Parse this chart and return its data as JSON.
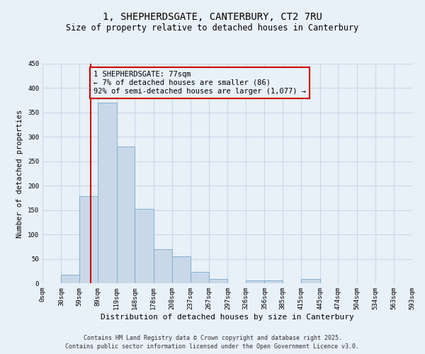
{
  "title_line1": "1, SHEPHERDSGATE, CANTERBURY, CT2 7RU",
  "title_line2": "Size of property relative to detached houses in Canterbury",
  "xlabel": "Distribution of detached houses by size in Canterbury",
  "ylabel": "Number of detached properties",
  "bin_edges": [
    0,
    30,
    59,
    89,
    119,
    148,
    178,
    208,
    237,
    267,
    297,
    326,
    356,
    385,
    415,
    445,
    474,
    504,
    534,
    563,
    593
  ],
  "bar_heights": [
    0,
    17,
    178,
    370,
    280,
    153,
    70,
    55,
    23,
    8,
    0,
    6,
    6,
    0,
    8,
    0,
    0,
    0,
    0,
    0
  ],
  "bar_color": "#c8d8e8",
  "bar_edge_color": "#7aa8c8",
  "grid_color": "#c8d8e8",
  "background_color": "#e8f0f8",
  "property_line_x": 77,
  "property_line_color": "#cc0000",
  "annotation_text": "1 SHEPHERDSGATE: 77sqm\n← 7% of detached houses are smaller (86)\n92% of semi-detached houses are larger (1,077) →",
  "annotation_box_color": "#cc0000",
  "ylim": [
    0,
    450
  ],
  "yticks": [
    0,
    50,
    100,
    150,
    200,
    250,
    300,
    350,
    400,
    450
  ],
  "tick_labels": [
    "0sqm",
    "30sqm",
    "59sqm",
    "89sqm",
    "119sqm",
    "148sqm",
    "178sqm",
    "208sqm",
    "237sqm",
    "267sqm",
    "297sqm",
    "326sqm",
    "356sqm",
    "385sqm",
    "415sqm",
    "445sqm",
    "474sqm",
    "504sqm",
    "534sqm",
    "563sqm",
    "593sqm"
  ],
  "footnote1": "Contains HM Land Registry data © Crown copyright and database right 2025.",
  "footnote2": "Contains public sector information licensed under the Open Government Licence v3.0.",
  "title_fontsize": 10,
  "subtitle_fontsize": 8.5,
  "axis_label_fontsize": 8,
  "tick_fontsize": 6.5,
  "annotation_fontsize": 7.5,
  "footnote_fontsize": 6.0,
  "ylabel_fontsize": 7.5
}
